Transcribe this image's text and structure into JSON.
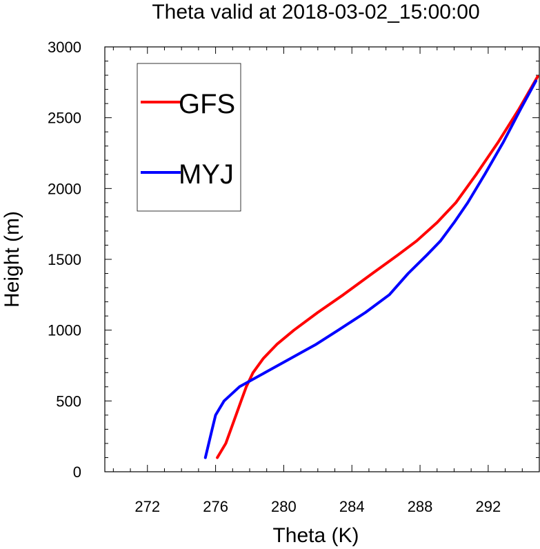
{
  "chart_data": {
    "type": "line",
    "title": "Theta valid at 2018-03-02_15:00:00",
    "xlabel": "Theta (K)",
    "ylabel": "Height (m)",
    "xlim": [
      269.5,
      295.0
    ],
    "ylim": [
      0,
      3000
    ],
    "xticks": [
      272,
      276,
      280,
      284,
      288,
      292
    ],
    "yticks": [
      0,
      500,
      1000,
      1500,
      2000,
      2500,
      3000
    ],
    "grid": false,
    "legend_position": "top-left",
    "series": [
      {
        "name": "GFS",
        "color": "#ff0000",
        "points": [
          [
            276.1,
            100
          ],
          [
            276.6,
            200
          ],
          [
            276.9,
            300
          ],
          [
            277.2,
            400
          ],
          [
            277.5,
            500
          ],
          [
            277.8,
            600
          ],
          [
            278.2,
            700
          ],
          [
            278.8,
            800
          ],
          [
            279.6,
            900
          ],
          [
            280.6,
            1000
          ],
          [
            282.0,
            1125
          ],
          [
            283.5,
            1250
          ],
          [
            285.2,
            1400
          ],
          [
            286.7,
            1530
          ],
          [
            287.8,
            1630
          ],
          [
            289.0,
            1760
          ],
          [
            290.1,
            1900
          ],
          [
            291.3,
            2100
          ],
          [
            292.6,
            2330
          ],
          [
            293.8,
            2560
          ],
          [
            294.9,
            2790
          ]
        ]
      },
      {
        "name": "MYJ",
        "color": "#0000ff",
        "points": [
          [
            275.4,
            100
          ],
          [
            275.6,
            200
          ],
          [
            275.8,
            300
          ],
          [
            276.0,
            400
          ],
          [
            276.5,
            500
          ],
          [
            277.4,
            600
          ],
          [
            278.9,
            700
          ],
          [
            280.4,
            800
          ],
          [
            281.9,
            900
          ],
          [
            283.2,
            1000
          ],
          [
            284.8,
            1125
          ],
          [
            286.2,
            1250
          ],
          [
            287.3,
            1400
          ],
          [
            288.4,
            1530
          ],
          [
            289.2,
            1630
          ],
          [
            290.0,
            1760
          ],
          [
            290.8,
            1900
          ],
          [
            291.8,
            2100
          ],
          [
            292.9,
            2330
          ],
          [
            293.9,
            2560
          ],
          [
            294.8,
            2760
          ]
        ]
      }
    ]
  }
}
